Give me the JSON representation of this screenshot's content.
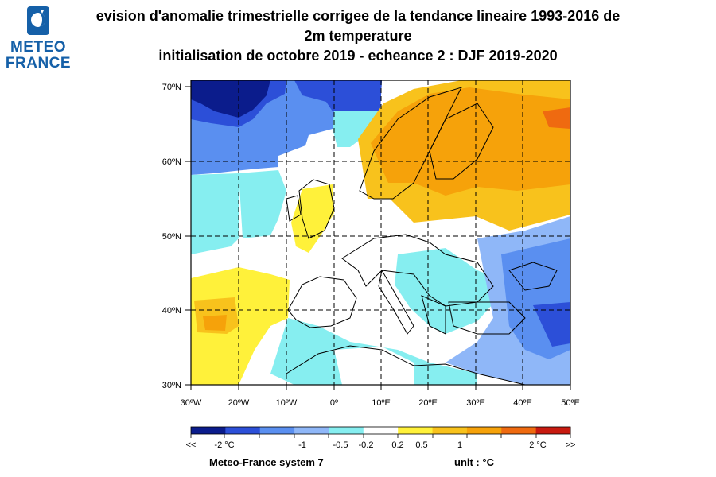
{
  "logo": {
    "line1": "METEO",
    "line2": "FRANCE"
  },
  "title": {
    "line1": "evision d'anomalie trimestrielle corrigee de la tendance lineaire 1993-2016 de",
    "line2": "2m temperature",
    "line3": "initialisation de octobre 2019  -  echeance 2 : DJF 2019-2020"
  },
  "map": {
    "lat_labels": [
      "70ºN",
      "60ºN",
      "50ºN",
      "40ºN",
      "30ºN"
    ],
    "lon_labels": [
      "30ºW",
      "20ºW",
      "10ºW",
      "0º",
      "10ºE",
      "20ºE",
      "30ºE",
      "40ºE",
      "50ºE"
    ]
  },
  "legend": {
    "colors": [
      "#0b1c8c",
      "#2c4fd8",
      "#5a8ff0",
      "#8fb7f8",
      "#86eef0",
      "#ffffff",
      "#fff13a",
      "#f8c21c",
      "#f6a20a",
      "#ef6a10",
      "#c81a10"
    ],
    "labels": [
      "<<",
      "-2 °C",
      "-1",
      "-0.5",
      "-0.2",
      "0.2",
      "0.5",
      "1",
      "2 °C",
      ">>"
    ]
  },
  "footer": {
    "system": "Meteo-France system 7",
    "unit": "unit :  °C"
  }
}
